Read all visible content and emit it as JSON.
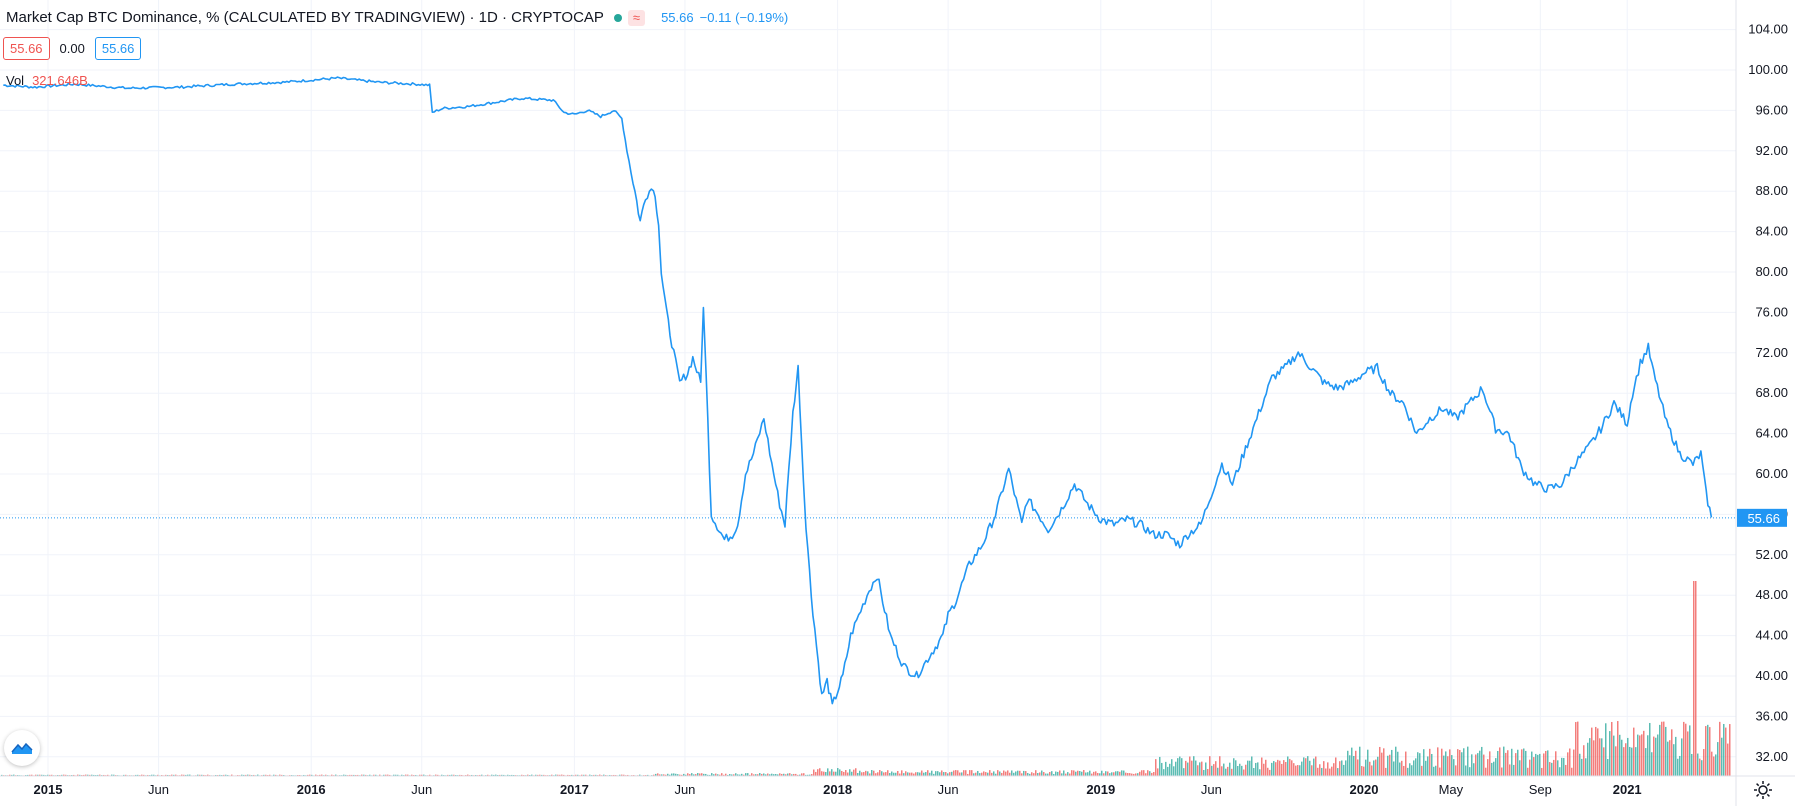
{
  "header": {
    "title": "Market Cap BTC Dominance, % (CALCULATED BY TRADINGVIEW) · 1D · CRYPTOCAP",
    "badge_symbol": "≈",
    "last_value": "55.66",
    "change": "−0.11 (−0.19%)"
  },
  "price_row": {
    "close": "55.66",
    "change": "0.00",
    "current": "55.66"
  },
  "volume": {
    "label": "Vol",
    "value": "321.646B"
  },
  "icons": {
    "logo": "tradingview-logo-icon",
    "settings": "gear-icon",
    "status": "status-dot-icon"
  },
  "colors": {
    "line": "#2196f3",
    "up_volume": "#26a69a",
    "down_volume": "#ef5350",
    "grid": "#f0f3fa",
    "axis_border": "#e0e3eb",
    "badge_red_text": "#ef5350",
    "badge_green": "#26a69a"
  },
  "chart_data": {
    "type": "line",
    "title": "Market Cap BTC Dominance, % (CALCULATED BY TRADINGVIEW)",
    "interval": "1D",
    "exchange": "CRYPTOCAP",
    "ylim": [
      30,
      106
    ],
    "y_ticks": [
      "104.00",
      "100.00",
      "96.00",
      "92.00",
      "88.00",
      "84.00",
      "80.00",
      "76.00",
      "72.00",
      "68.00",
      "64.00",
      "60.00",
      "56.00",
      "52.00",
      "48.00",
      "44.00",
      "40.00",
      "36.00",
      "32.00"
    ],
    "last_price": 55.66,
    "x_ticks": [
      {
        "label": "2015",
        "t": 2015.0,
        "bold": true
      },
      {
        "label": "Jun",
        "t": 2015.42,
        "bold": false
      },
      {
        "label": "2016",
        "t": 2016.0,
        "bold": true
      },
      {
        "label": "Jun",
        "t": 2016.42,
        "bold": false
      },
      {
        "label": "2017",
        "t": 2017.0,
        "bold": true
      },
      {
        "label": "Jun",
        "t": 2017.42,
        "bold": false
      },
      {
        "label": "2018",
        "t": 2018.0,
        "bold": true
      },
      {
        "label": "Jun",
        "t": 2018.42,
        "bold": false
      },
      {
        "label": "2019",
        "t": 2019.0,
        "bold": true
      },
      {
        "label": "Jun",
        "t": 2019.42,
        "bold": false
      },
      {
        "label": "2020",
        "t": 2020.0,
        "bold": true
      },
      {
        "label": "May",
        "t": 2020.33,
        "bold": false
      },
      {
        "label": "Sep",
        "t": 2020.67,
        "bold": false
      },
      {
        "label": "2021",
        "t": 2021.0,
        "bold": true
      }
    ],
    "series": [
      {
        "x": [
          2014.83,
          2014.95,
          2015.1,
          2015.3,
          2015.5,
          2015.7,
          2015.9,
          2016.0,
          2016.1,
          2016.25,
          2016.4,
          2016.45,
          2016.46,
          2016.5,
          2016.6,
          2016.75,
          2016.8,
          2016.92,
          2016.96,
          2017.0,
          2017.05,
          2017.1,
          2017.15,
          2017.18,
          2017.2,
          2017.23,
          2017.25,
          2017.27,
          2017.3,
          2017.32,
          2017.33,
          2017.35,
          2017.37,
          2017.4,
          2017.43,
          2017.45,
          2017.48,
          2017.49,
          2017.5,
          2017.52,
          2017.55,
          2017.57,
          2017.6,
          2017.62,
          2017.65,
          2017.68,
          2017.72,
          2017.75,
          2017.78,
          2017.8,
          2017.83,
          2017.85,
          2017.87,
          2017.88,
          2017.9,
          2017.92,
          2017.94,
          2017.96,
          2017.98,
          2018.0,
          2018.02,
          2018.05,
          2018.08,
          2018.12,
          2018.15,
          2018.2,
          2018.25,
          2018.3,
          2018.35,
          2018.4,
          2018.42,
          2018.45,
          2018.5,
          2018.55,
          2018.6,
          2018.65,
          2018.7,
          2018.72,
          2018.75,
          2018.8,
          2018.85,
          2018.9,
          2018.95,
          2019.0,
          2019.05,
          2019.1,
          2019.15,
          2019.2,
          2019.25,
          2019.3,
          2019.33,
          2019.38,
          2019.42,
          2019.46,
          2019.5,
          2019.55,
          2019.6,
          2019.65,
          2019.7,
          2019.75,
          2019.8,
          2019.85,
          2019.9,
          2019.95,
          2020.0,
          2020.05,
          2020.1,
          2020.15,
          2020.2,
          2020.25,
          2020.3,
          2020.35,
          2020.4,
          2020.45,
          2020.5,
          2020.55,
          2020.6,
          2020.65,
          2020.7,
          2020.75,
          2020.8,
          2020.85,
          2020.9,
          2020.95,
          2021.0,
          2021.02,
          2021.05,
          2021.08,
          2021.1,
          2021.15,
          2021.2,
          2021.25,
          2021.28,
          2021.3,
          2021.32
        ],
        "y": [
          98.5,
          98.3,
          98.6,
          98.2,
          98.3,
          98.6,
          98.8,
          99.0,
          99.2,
          98.8,
          98.6,
          98.5,
          95.8,
          96.2,
          96.4,
          97.0,
          97.2,
          97.0,
          95.8,
          95.6,
          96.0,
          95.4,
          96.0,
          95.2,
          92.0,
          88.0,
          85.0,
          87.5,
          88.5,
          85.0,
          80.0,
          76.0,
          73.0,
          69.0,
          70.0,
          71.5,
          69.0,
          76.8,
          70.0,
          56.0,
          54.5,
          53.5,
          54.0,
          55.0,
          60.0,
          62.0,
          65.5,
          61.0,
          57.0,
          55.0,
          66.0,
          70.5,
          59.5,
          55.0,
          48.0,
          43.0,
          38.0,
          39.5,
          37.0,
          38.5,
          40.0,
          44.0,
          46.0,
          48.5,
          50.0,
          44.0,
          41.0,
          40.0,
          42.0,
          44.0,
          46.0,
          47.5,
          51.0,
          53.0,
          56.0,
          60.5,
          55.0,
          57.5,
          56.5,
          54.5,
          56.5,
          59.0,
          57.0,
          55.5,
          55.0,
          55.5,
          55.0,
          54.0,
          54.0,
          53.0,
          54.0,
          55.0,
          58.0,
          61.0,
          59.0,
          62.5,
          66.0,
          69.5,
          70.5,
          72.0,
          70.5,
          69.0,
          68.5,
          69.0,
          70.0,
          70.5,
          68.0,
          67.0,
          64.0,
          65.5,
          66.5,
          65.5,
          67.0,
          68.5,
          64.5,
          64.0,
          60.5,
          59.0,
          58.5,
          59.0,
          61.0,
          62.5,
          64.5,
          67.0,
          65.0,
          68.0,
          71.0,
          72.5,
          70.0,
          65.0,
          62.0,
          61.0,
          62.0,
          58.0,
          55.7
        ]
      }
    ]
  }
}
